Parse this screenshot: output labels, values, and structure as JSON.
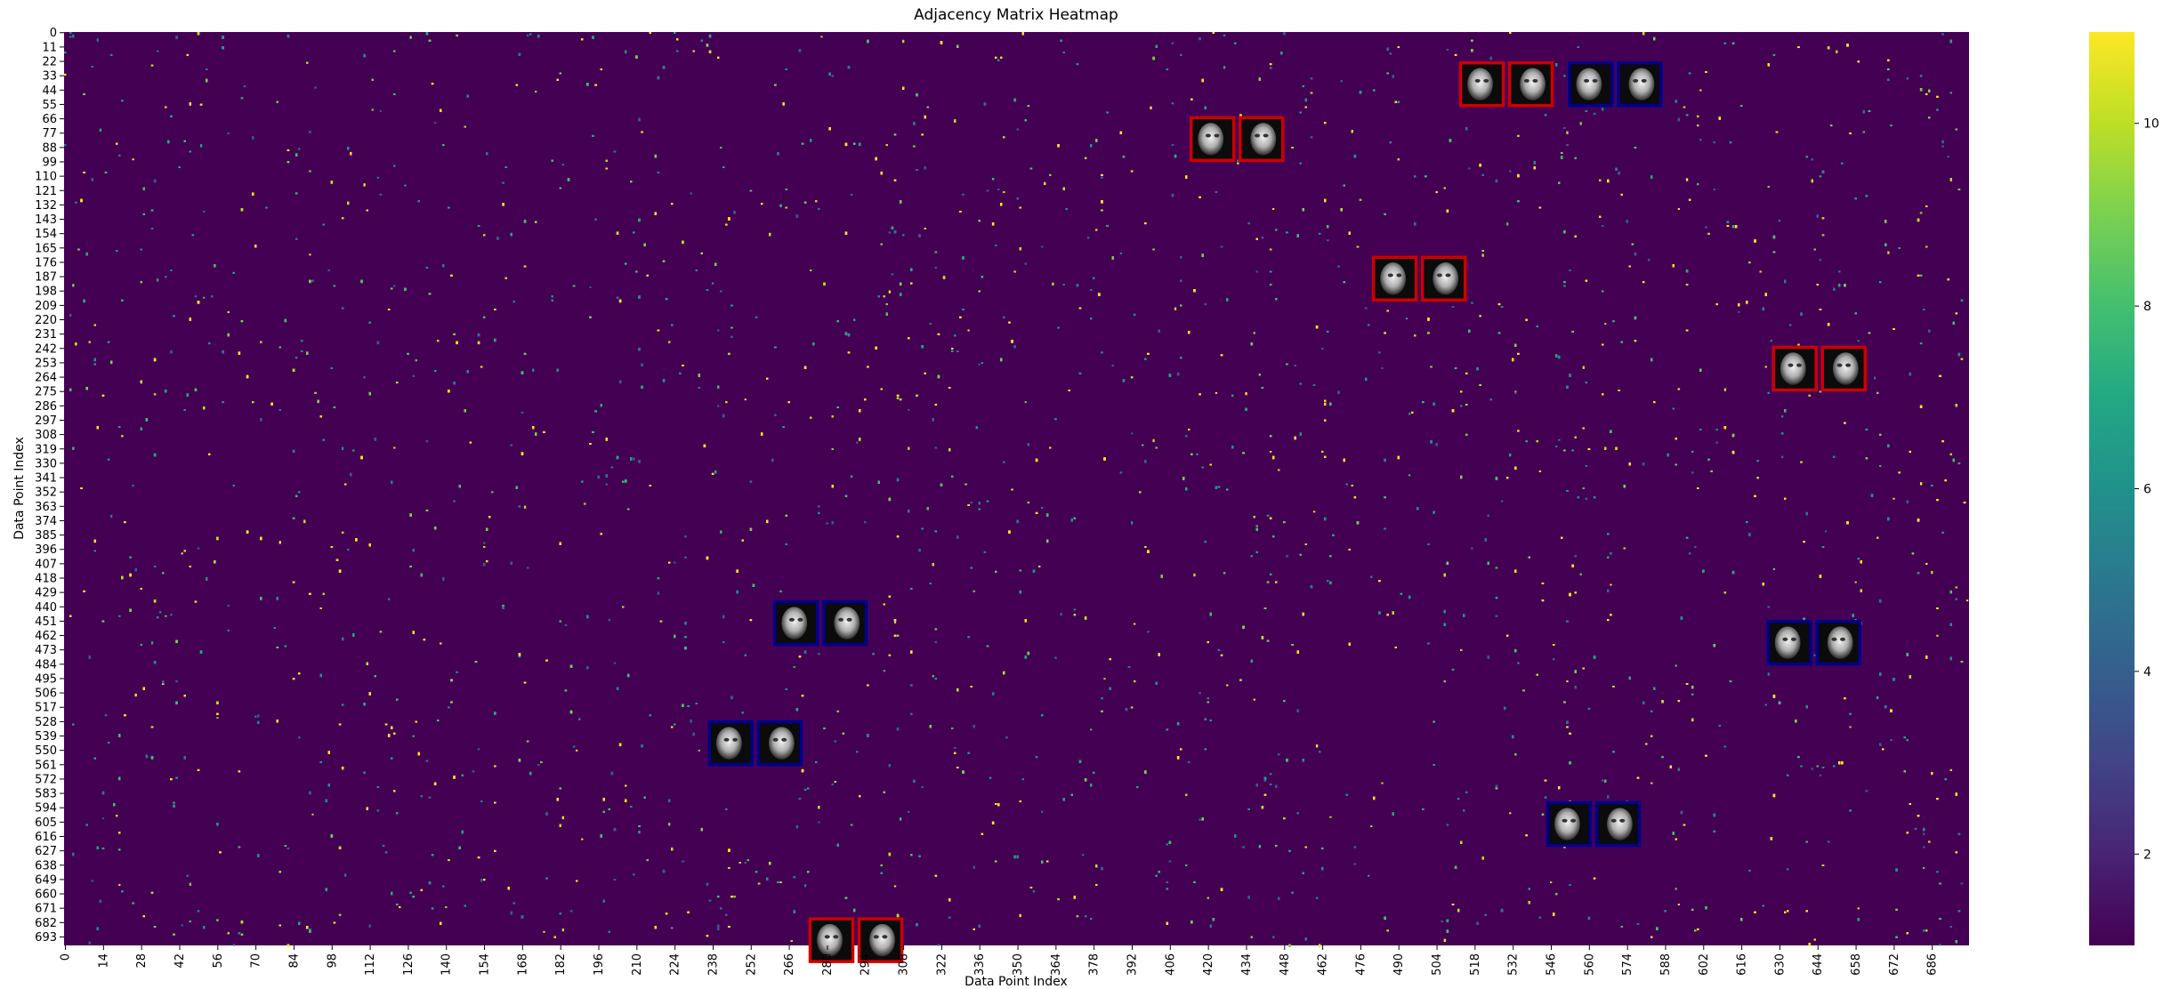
{
  "chart_data": {
    "type": "heatmap",
    "title": "Adjacency Matrix Heatmap",
    "xlabel": "Data Point Index",
    "ylabel": "Data Point Index",
    "n": 700,
    "x_ticks": [
      0,
      14,
      28,
      42,
      56,
      70,
      84,
      98,
      112,
      126,
      140,
      154,
      168,
      182,
      196,
      210,
      224,
      238,
      252,
      266,
      280,
      294,
      308,
      322,
      336,
      350,
      364,
      378,
      392,
      406,
      420,
      434,
      448,
      462,
      476,
      490,
      504,
      518,
      532,
      546,
      560,
      574,
      588,
      602,
      616,
      630,
      644,
      658,
      672,
      686
    ],
    "y_ticks": [
      0,
      11,
      22,
      33,
      44,
      55,
      66,
      77,
      88,
      99,
      110,
      121,
      132,
      143,
      154,
      165,
      176,
      187,
      198,
      209,
      220,
      231,
      242,
      253,
      264,
      275,
      286,
      297,
      308,
      319,
      330,
      341,
      352,
      363,
      374,
      385,
      396,
      407,
      418,
      429,
      440,
      451,
      462,
      473,
      484,
      495,
      506,
      517,
      528,
      539,
      550,
      561,
      572,
      583,
      594,
      605,
      616,
      627,
      638,
      649,
      660,
      671,
      682,
      693
    ],
    "value_range": [
      1,
      11
    ],
    "colormap": "viridis",
    "colorbar_ticks": [
      2,
      4,
      6,
      8,
      10
    ],
    "inset_pairs": [
      {
        "x": [
          521,
          539
        ],
        "y": 40,
        "border": "red",
        "border_color": "#cc0000"
      },
      {
        "x": [
          561,
          579
        ],
        "y": 40,
        "border": "blue",
        "border_color": "#00008b"
      },
      {
        "x": [
          422,
          440
        ],
        "y": 82,
        "border": "red",
        "border_color": "#cc0000"
      },
      {
        "x": [
          489,
          507
        ],
        "y": 189,
        "border": "red",
        "border_color": "#cc0000"
      },
      {
        "x": [
          636,
          654
        ],
        "y": 258,
        "border": "red",
        "border_color": "#cc0000"
      },
      {
        "x": [
          269,
          287
        ],
        "y": 453,
        "border": "blue",
        "border_color": "#00008b"
      },
      {
        "x": [
          634,
          652
        ],
        "y": 468,
        "border": "blue",
        "border_color": "#00008b"
      },
      {
        "x": [
          245,
          263
        ],
        "y": 545,
        "border": "blue",
        "border_color": "#00008b"
      },
      {
        "x": [
          553,
          571
        ],
        "y": 607,
        "border": "blue",
        "border_color": "#00008b"
      },
      {
        "x": [
          282,
          300
        ],
        "y": 696,
        "border": "red",
        "border_color": "#cc0000"
      }
    ]
  }
}
